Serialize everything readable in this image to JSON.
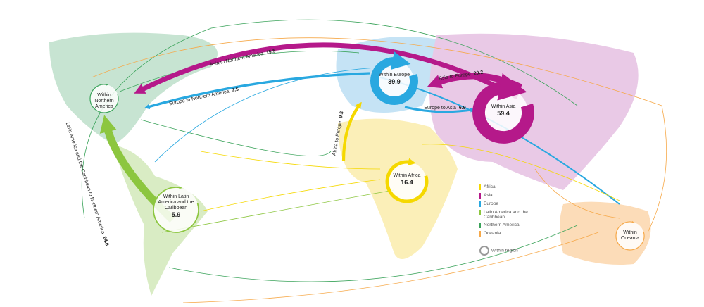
{
  "flows": [
    {
      "label": "Asia to Northern America",
      "value": 15.5
    },
    {
      "label": "Europe to Northern America",
      "value": 7.5
    },
    {
      "label": "Asia to Europe",
      "value": 20.2
    },
    {
      "label": "Europe to Asia",
      "value": 6.9
    },
    {
      "label": "Africa to Europe",
      "value": 9.3
    },
    {
      "label": "Latin America and the Caribbean to Northern America",
      "value": 24.6
    }
  ],
  "within": [
    {
      "label": "Within Europe",
      "value": 39.9
    },
    {
      "label": "Within Asia",
      "value": 59.4
    },
    {
      "label": "Within Africa",
      "value": 16.4
    },
    {
      "label": "Within Latin America and the Caribbean",
      "value": 5.9
    },
    {
      "label": "Within Northern America"
    },
    {
      "label": "Within Oceania"
    }
  ],
  "legend": {
    "items": [
      "Africa",
      "Asia",
      "Europe",
      "Latin America and the Caribbean",
      "Northern America",
      "Oceania"
    ],
    "within": "Within region"
  }
}
